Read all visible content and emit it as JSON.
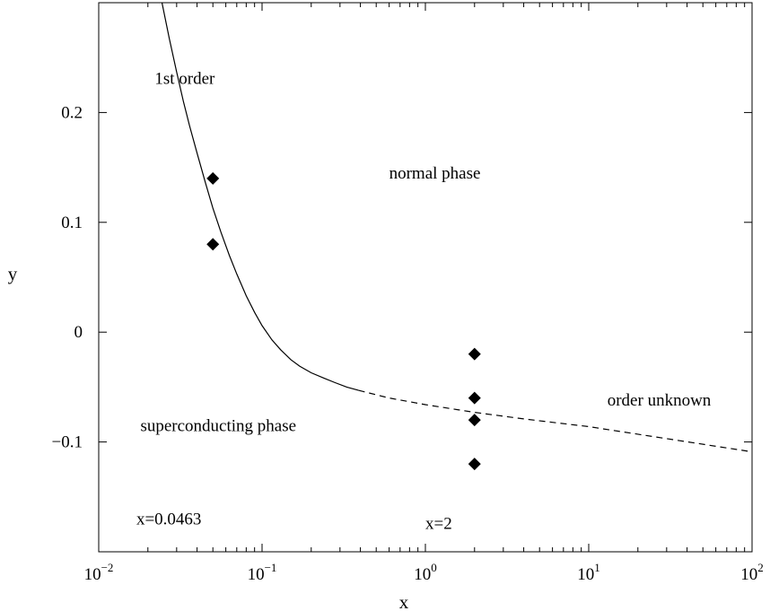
{
  "chart_data": {
    "type": "line",
    "title": "",
    "xlabel": "x",
    "ylabel": "y",
    "x_scale": "log",
    "xlim": [
      0.01,
      100
    ],
    "ylim": [
      -0.2,
      0.3
    ],
    "grid": false,
    "legend": "none",
    "x_ticks": [
      {
        "value": 0.01,
        "base": "10",
        "exp": "−2"
      },
      {
        "value": 0.1,
        "base": "10",
        "exp": "−1"
      },
      {
        "value": 1,
        "base": "10",
        "exp": "0"
      },
      {
        "value": 10,
        "base": "10",
        "exp": "1"
      },
      {
        "value": 100,
        "base": "10",
        "exp": "2"
      }
    ],
    "y_ticks": [
      {
        "value": 0.2,
        "label": "0.2"
      },
      {
        "value": 0.1,
        "label": "0.1"
      },
      {
        "value": 0,
        "label": "0"
      },
      {
        "value": -0.1,
        "label": "−0.1"
      }
    ],
    "series": [
      {
        "style": "solid",
        "color": "#000000",
        "x": [
          0.0244,
          0.027,
          0.03,
          0.033,
          0.036,
          0.04,
          0.045,
          0.05,
          0.056,
          0.063,
          0.07,
          0.08,
          0.09,
          0.1,
          0.115,
          0.13,
          0.15,
          0.17,
          0.2,
          0.24,
          0.28,
          0.33,
          0.39
        ],
        "y": [
          0.3,
          0.268,
          0.237,
          0.21,
          0.188,
          0.163,
          0.136,
          0.113,
          0.091,
          0.07,
          0.053,
          0.033,
          0.018,
          0.006,
          -0.007,
          -0.016,
          -0.025,
          -0.031,
          -0.037,
          -0.042,
          -0.046,
          -0.05,
          -0.053
        ]
      },
      {
        "style": "dashed",
        "color": "#000000",
        "x": [
          0.39,
          0.6,
          1,
          2,
          4,
          10,
          30,
          100
        ],
        "y": [
          -0.053,
          -0.06,
          -0.066,
          -0.073,
          -0.079,
          -0.086,
          -0.097,
          -0.109
        ]
      }
    ],
    "points": [
      {
        "x": 0.05,
        "y": 0.14
      },
      {
        "x": 0.05,
        "y": 0.08
      },
      {
        "x": 2,
        "y": -0.02
      },
      {
        "x": 2,
        "y": -0.06
      },
      {
        "x": 2,
        "y": -0.08
      },
      {
        "x": 2,
        "y": -0.12
      }
    ],
    "annotations": [
      {
        "text": "1st order",
        "x": 0.022,
        "y": 0.226
      },
      {
        "text": "normal phase",
        "x": 0.6,
        "y": 0.14
      },
      {
        "text": "order unknown",
        "x": 13,
        "y": -0.067
      },
      {
        "text": "superconducting phase",
        "x": 0.018,
        "y": -0.09
      },
      {
        "text": "x=0.0463",
        "x": 0.017,
        "y": -0.175
      },
      {
        "text": "x=2",
        "x": 1.0,
        "y": -0.179
      }
    ]
  }
}
